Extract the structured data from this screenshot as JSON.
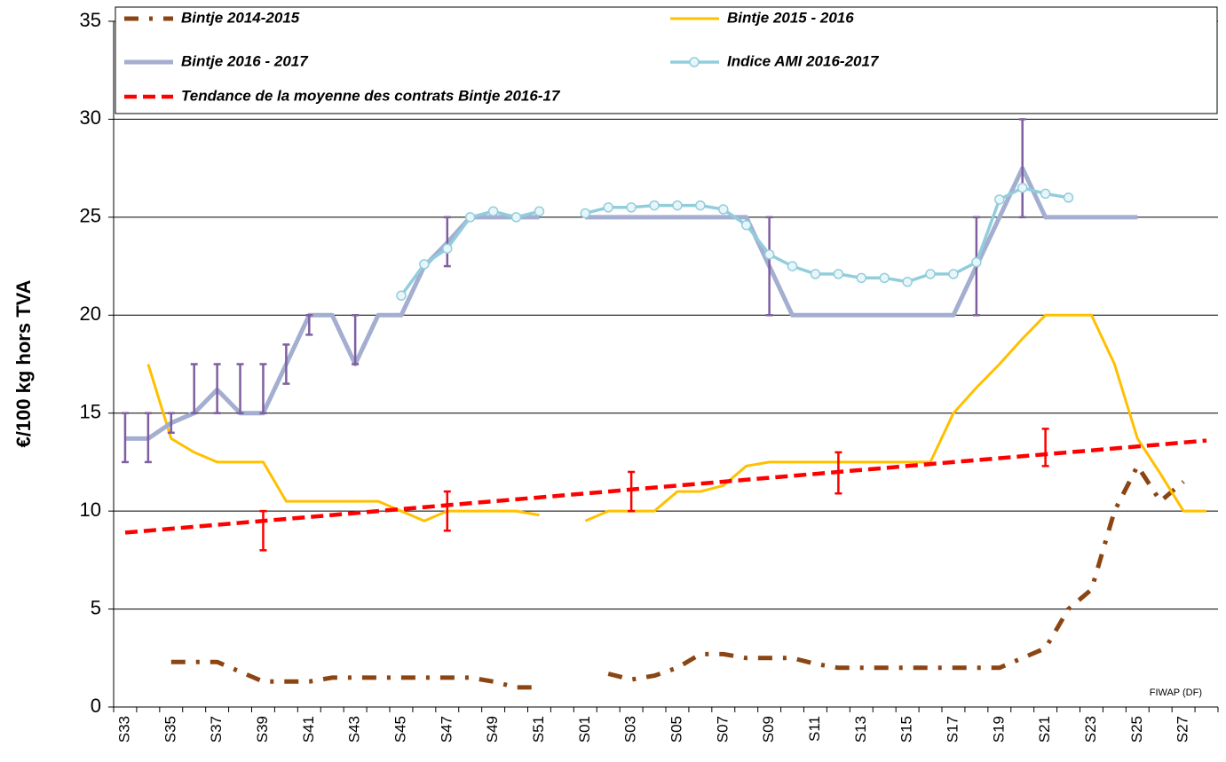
{
  "chart_data": {
    "type": "line",
    "y_label": "€/100 kg hors TVA",
    "annotation": "FIWAP (DF)",
    "categories": [
      "S33",
      null,
      "S35",
      null,
      "S37",
      null,
      "S39",
      null,
      "S41",
      null,
      "S43",
      null,
      "S45",
      null,
      "S47",
      null,
      "S49",
      null,
      "S51",
      null,
      "S01",
      null,
      "S03",
      null,
      "S05",
      null,
      "S07",
      null,
      "S09",
      null,
      "S11",
      null,
      "S13",
      null,
      "S15",
      null,
      "S17",
      null,
      "S19",
      null,
      "S21",
      null,
      "S23",
      null,
      "S25",
      null,
      "S27",
      null
    ],
    "ylim": [
      0,
      35
    ],
    "yticks": [
      0,
      5,
      10,
      15,
      20,
      25,
      30,
      35
    ],
    "grid": true,
    "legend": "top",
    "series": [
      {
        "name": "Bintje 2014-2015",
        "color": "#8b4513",
        "style": "dash-dot",
        "values": [
          null,
          null,
          2.3,
          2.3,
          2.3,
          1.8,
          1.3,
          1.3,
          1.3,
          1.5,
          1.5,
          1.5,
          1.5,
          1.5,
          1.5,
          1.5,
          1.3,
          1,
          1,
          null,
          null,
          1.7,
          1.4,
          1.6,
          2,
          2.7,
          2.7,
          2.5,
          2.5,
          2.5,
          2.2,
          2,
          2,
          2,
          2,
          2,
          2,
          2,
          2,
          2.5,
          3,
          5,
          6,
          10,
          12.3,
          10.5,
          11.5,
          null
        ]
      },
      {
        "name": "Bintje 2015 - 2016",
        "color": "#ffc000",
        "style": "solid",
        "values": [
          null,
          17.5,
          13.7,
          13,
          12.5,
          12.5,
          12.5,
          10.5,
          10.5,
          10.5,
          10.5,
          10.5,
          10,
          9.5,
          10,
          10,
          10,
          10,
          9.8,
          null,
          9.5,
          10,
          10,
          10,
          11,
          11,
          11.3,
          12.3,
          12.5,
          12.5,
          12.5,
          12.5,
          12.5,
          12.5,
          12.5,
          12.5,
          15,
          16.3,
          17.5,
          18.8,
          20,
          20,
          20,
          17.5,
          13.7,
          11.9,
          10,
          10
        ]
      },
      {
        "name": "Bintje 2016 - 2017",
        "color": "#a3aed0",
        "style": "solid",
        "err_color": "#7f5fa0",
        "values": [
          13.7,
          13.7,
          14.5,
          15,
          16.2,
          15,
          15,
          17.5,
          20,
          20,
          17.5,
          20,
          20,
          22.5,
          23.7,
          25,
          25,
          25,
          25,
          null,
          25,
          25,
          25,
          25,
          25,
          25,
          25,
          25,
          22.5,
          20,
          20,
          20,
          20,
          20,
          20,
          20,
          20,
          22.5,
          25,
          27.5,
          25,
          25,
          25,
          25,
          25,
          null,
          null,
          null
        ],
        "err_low": [
          12.5,
          12.5,
          14,
          15,
          15,
          15,
          15,
          16.5,
          19,
          null,
          17.5,
          null,
          null,
          null,
          22.5,
          null,
          null,
          null,
          null,
          null,
          null,
          null,
          null,
          null,
          null,
          null,
          null,
          null,
          20,
          null,
          null,
          null,
          null,
          null,
          null,
          null,
          null,
          20,
          null,
          25,
          null,
          null,
          null,
          null,
          null,
          null,
          null,
          null
        ],
        "err_high": [
          15,
          15,
          15,
          17.5,
          17.5,
          17.5,
          17.5,
          18.5,
          20,
          null,
          20,
          null,
          null,
          null,
          25,
          null,
          null,
          null,
          null,
          null,
          null,
          null,
          null,
          null,
          null,
          null,
          null,
          null,
          25,
          null,
          null,
          null,
          null,
          null,
          null,
          null,
          null,
          25,
          null,
          30,
          null,
          null,
          null,
          null,
          null,
          null,
          null,
          null
        ]
      },
      {
        "name": "Indice AMI 2016-2017",
        "color": "#92cddc",
        "style": "solid",
        "marker": "circle",
        "values": [
          null,
          null,
          null,
          null,
          null,
          null,
          null,
          null,
          null,
          null,
          null,
          null,
          21,
          22.6,
          23.4,
          25,
          25.3,
          25,
          25.3,
          null,
          25.2,
          25.5,
          25.5,
          25.6,
          25.6,
          25.6,
          25.4,
          24.6,
          23.1,
          22.5,
          22.1,
          22.1,
          21.9,
          21.9,
          21.7,
          22.1,
          22.1,
          22.7,
          25.9,
          26.5,
          26.2,
          26,
          null,
          null,
          null,
          null,
          null,
          null
        ]
      },
      {
        "name": "Tendance de la moyenne des contrats Bintje 2016-17",
        "color": "#ff0000",
        "style": "dashed",
        "err_color": "#ff0000",
        "values": [
          8.9,
          9,
          9.1,
          9.2,
          9.3,
          9.4,
          9.5,
          9.6,
          9.7,
          9.8,
          9.9,
          10,
          10.1,
          10.2,
          10.3,
          10.4,
          10.5,
          10.6,
          10.7,
          10.8,
          10.9,
          11,
          11.1,
          11.2,
          11.3,
          11.4,
          11.5,
          11.6,
          11.7,
          11.8,
          11.9,
          12,
          12.1,
          12.2,
          12.3,
          12.4,
          12.5,
          12.6,
          12.7,
          12.8,
          12.9,
          13,
          13.1,
          13.2,
          13.3,
          13.4,
          13.5,
          13.6
        ],
        "err_low": [
          null,
          null,
          null,
          null,
          null,
          null,
          8,
          null,
          null,
          null,
          null,
          null,
          null,
          null,
          9,
          null,
          null,
          null,
          null,
          null,
          null,
          null,
          10,
          null,
          null,
          null,
          null,
          null,
          null,
          null,
          null,
          10.9,
          null,
          null,
          null,
          null,
          null,
          null,
          null,
          null,
          12.3,
          null,
          null,
          null,
          null,
          null,
          null,
          null
        ],
        "err_high": [
          null,
          null,
          null,
          null,
          null,
          null,
          10,
          null,
          null,
          null,
          null,
          null,
          null,
          null,
          11,
          null,
          null,
          null,
          null,
          null,
          null,
          null,
          12,
          null,
          null,
          null,
          null,
          null,
          null,
          null,
          null,
          13,
          null,
          null,
          null,
          null,
          null,
          null,
          null,
          null,
          14.2,
          null,
          null,
          null,
          null,
          null,
          null,
          null
        ]
      }
    ]
  }
}
